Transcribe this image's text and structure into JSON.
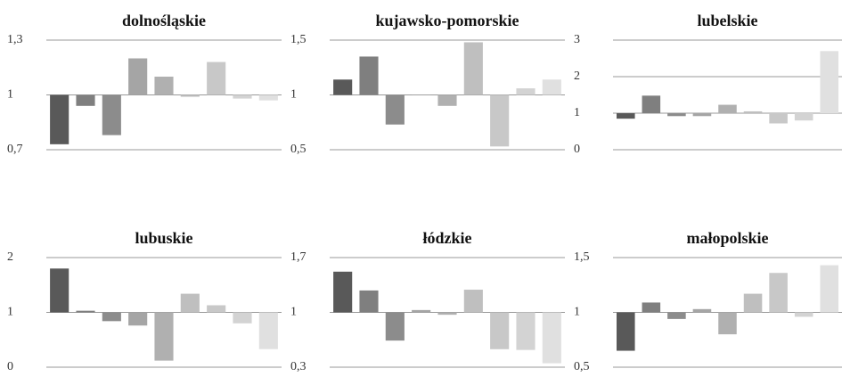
{
  "chart_data": [
    {
      "type": "bar",
      "title": "dolnośląskie",
      "baseline": 1,
      "values": [
        0.73,
        0.94,
        0.78,
        1.2,
        1.1,
        0.99,
        1.18,
        0.98,
        0.97
      ],
      "colors": [
        "#595959",
        "#7f7f7f",
        "#8c8c8c",
        "#a5a5a5",
        "#b0b0b0",
        "#bfbfbf",
        "#c8c8c8",
        "#d3d3d3",
        "#e0e0e0"
      ],
      "ylim": [
        0.7,
        1.3
      ],
      "yticks": [
        {
          "value": 0.7,
          "label": "0,7"
        },
        1,
        {
          "value": 1.3,
          "label": "1,3"
        }
      ],
      "grid": true
    },
    {
      "type": "bar",
      "title": "kujawsko-pomorskie",
      "baseline": 1,
      "values": [
        1.14,
        1.35,
        0.73,
        1.0,
        0.9,
        1.48,
        0.53,
        1.06,
        1.14
      ],
      "colors": [
        "#595959",
        "#7f7f7f",
        "#8c8c8c",
        "#a5a5a5",
        "#b0b0b0",
        "#bfbfbf",
        "#c8c8c8",
        "#d3d3d3",
        "#e0e0e0"
      ],
      "ylim": [
        0.5,
        1.5
      ],
      "yticks": [
        {
          "value": 0.5,
          "label": "0,5"
        },
        1,
        {
          "value": 1.5,
          "label": "1,5"
        }
      ],
      "grid": true
    },
    {
      "type": "bar",
      "title": "lubelskie",
      "baseline": 1,
      "values": [
        0.85,
        1.48,
        0.92,
        0.92,
        1.23,
        1.05,
        0.72,
        0.8,
        2.7
      ],
      "colors": [
        "#595959",
        "#7f7f7f",
        "#8c8c8c",
        "#a5a5a5",
        "#b0b0b0",
        "#bfbfbf",
        "#c8c8c8",
        "#d3d3d3",
        "#e0e0e0"
      ],
      "ylim": [
        0,
        3
      ],
      "yticks": [
        0,
        1,
        2,
        3
      ],
      "grid": true
    },
    {
      "type": "bar",
      "title": "lubuskie",
      "baseline": 1,
      "values": [
        1.8,
        1.03,
        0.84,
        0.76,
        0.12,
        1.34,
        1.13,
        0.8,
        0.33
      ],
      "colors": [
        "#595959",
        "#7f7f7f",
        "#8c8c8c",
        "#a5a5a5",
        "#b0b0b0",
        "#bfbfbf",
        "#c8c8c8",
        "#d3d3d3",
        "#e0e0e0"
      ],
      "ylim": [
        0,
        2
      ],
      "yticks": [
        0,
        1,
        2
      ],
      "grid": true
    },
    {
      "type": "bar",
      "title": "łódzkie",
      "baseline": 1,
      "values": [
        1.52,
        1.28,
        0.64,
        1.03,
        0.97,
        1.29,
        0.53,
        0.52,
        0.35
      ],
      "colors": [
        "#595959",
        "#7f7f7f",
        "#8c8c8c",
        "#a5a5a5",
        "#b0b0b0",
        "#bfbfbf",
        "#c8c8c8",
        "#d3d3d3",
        "#e0e0e0"
      ],
      "ylim": [
        0.3,
        1.7
      ],
      "yticks": [
        {
          "value": 0.3,
          "label": "0,3"
        },
        1,
        {
          "value": 1.7,
          "label": "1,7"
        }
      ],
      "grid": true
    },
    {
      "type": "bar",
      "title": "małopolskie",
      "baseline": 1,
      "values": [
        0.65,
        1.09,
        0.94,
        1.03,
        0.8,
        1.17,
        1.36,
        0.96,
        1.43
      ],
      "colors": [
        "#595959",
        "#7f7f7f",
        "#8c8c8c",
        "#a5a5a5",
        "#b0b0b0",
        "#bfbfbf",
        "#c8c8c8",
        "#d3d3d3",
        "#e0e0e0"
      ],
      "ylim": [
        0.5,
        1.5
      ],
      "yticks": [
        {
          "value": 0.5,
          "label": "0,5"
        },
        1,
        {
          "value": 1.5,
          "label": "1,5"
        }
      ],
      "grid": true
    }
  ]
}
